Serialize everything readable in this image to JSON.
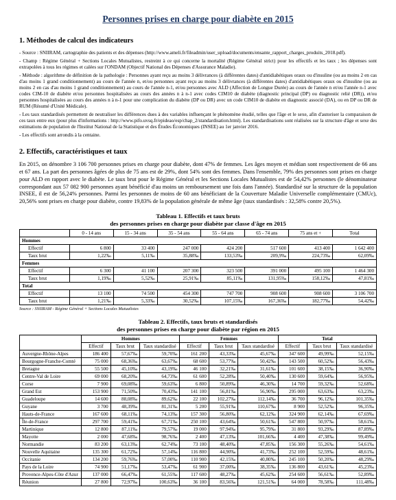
{
  "title": "Personnes prises en charge pour diabète en 2015",
  "section1": {
    "heading": "1. Méthodes de calcul des indicateurs",
    "bullets": [
      "- Source : SNIIRAM, cartographie des patients et des dépenses (http://www.ameli.fr/fileadmin/user_upload/documents/ensante_rapport_charges_produits_2018.pdf).",
      "- Champ : Régime Général + Sections Locales Mutualistes, restreint à ce qui concerne la mortalité (Régime Général strict) pour les effectifs et les taux ; les dépenses sont extrapolées à tous les régimes et calées sur l'ONDAM (Objectif National des Dépenses d'Assurance Maladie).",
      "- Méthode : algorithme de définition de la pathologie : Personnes ayant reçu au moins 3 délivrances (à différentes dates) d'antidiabétiques oraux ou d'insuline (ou au moins 2 en cas d'au moins 1 grand conditionnement) au cours de l'année n, et/ou personnes ayant reçu au moins 3 délivrances (à différentes dates) d'antidiabétiques oraux ou d'insuline (ou au moins 2 en cas d'au moins 1 grand conditionnement) au cours de l'année n-1, et/ou personnes avec ALD (Affection de Longue Durée) au cours de l'année n et/ou l'année n-1 avec codes CIM-10 de diabète et/ou personnes hospitalisées au cours des années n à n-1 avec codes CIM10 de diabète (diagnostic principal (DP) ou diagnostic relié (DR)), et/ou personnes hospitalisées au cours des années n à n-1 pour une complication du diabète (DP ou DR) avec un code CIM10 de diabète en diagnostic associé (DA), ou en DP ou DR de RUM (Résumé d'Unité Médicale).",
      "- Les taux standardisés permettent de neutraliser les différences dues à des variables influençant le phénomène étudié, telles que l'âge et le sexe, afin d'autoriser la comparaison de ces taux entre eux (pour plus d'informations : http://www.pifo.uvsq.fr/epideao/esp/chap_2/standardisation.html). Les standardisations sont réalisées sur la structure d'âge et sexe des estimations de population de l'Institut National de la Statistique et des Études Économiques (INSEE) au 1er janvier 2016.",
      "- Les effectifs sont arrondis à la centaine."
    ]
  },
  "section2": {
    "heading": "2. Effectifs, caractéristiques et taux",
    "intro": "En 2015, on dénombre 3 106 700 personnes prises en charge pour diabète, dont 47% de femmes. Les âges moyen et médian sont respectivement de 66 ans et 67 ans. La part des personnes âgées de plus de 75 ans est de 29%, dont 54% sont des femmes. Dans l'ensemble, 79% des personnes sont prises en charge pour ALD en rapport avec le diabète. Le taux brut pour le Régime Général et les Sections Locales Mutualistes est de 54,42% personnes (le dénominateur correspondant aux 57 082 900 personnes ayant bénéficié d'au moins un remboursement une fois dans l'année). Standardisé sur la structure de la population INSEE, il est de 56,24% personnes. Parmi les personnes de moins de 60 ans bénéficiant de la Couverture Maladie Universelle complémentaire (CMUc), 20,56% sont prises en charge pour diabète, contre 19,83% de la population générale de même âge (taux standardisés : 32,58% contre 20,5%)."
  },
  "table1": {
    "title": "Tableau 1. Effectifs et taux bruts",
    "subtitle": "des personnes prises en charge pour diabète par classe d'âge en 2015",
    "cols": [
      "0 - 14 ans",
      "15 - 34 ans",
      "35 - 54 ans",
      "55 - 64 ans",
      "65 - 74 ans",
      "75 ans et +",
      "Total"
    ],
    "groups": [
      {
        "label": "Hommes",
        "rows": [
          {
            "label": "Effectif",
            "vals": [
              "6 800",
              "33 400",
              "247 000",
              "424 200",
              "517 600",
              "413 400",
              "1 642 400"
            ]
          },
          {
            "label": "Taux brut",
            "vals": [
              "1,22‰",
              "5,11‰",
              "35,88‰",
              "133,53‰",
              "209,9‰",
              "224,73‰",
              "62,09‰"
            ]
          }
        ]
      },
      {
        "label": "Femmes",
        "rows": [
          {
            "label": "Effectif",
            "vals": [
              "6 300",
              "41 100",
              "207 300",
              "323 500",
              "391 000",
              "495 100",
              "1 464 300"
            ]
          },
          {
            "label": "Taux brut",
            "vals": [
              "1,19‰",
              "5,52‰",
              "25,91‰",
              "85,11‰",
              "131,95‰",
              "158,12‰",
              "47,81‰"
            ]
          }
        ]
      },
      {
        "label": "Total",
        "rows": [
          {
            "label": "Effectif",
            "vals": [
              "13 100",
              "74 500",
              "454 300",
              "747 700",
              "908 600",
              "908 600",
              "3 106 700"
            ]
          },
          {
            "label": "Taux brut",
            "vals": [
              "1,21‰",
              "5,33‰",
              "30,52‰",
              "107,15‰",
              "167,36‰",
              "182,77‰",
              "54,42‰"
            ]
          }
        ]
      }
    ],
    "source": "Source : SNIIRAM - Régime Général + Sections Locales Mutualistes"
  },
  "table2": {
    "title": "Tableau 2. Effectifs, taux bruts et standardisés",
    "subtitle": "des personnes prises en charge pour diabète par région en 2015",
    "groupcols": [
      "Hommes",
      "Femmes",
      "Total"
    ],
    "subcols": [
      "Effectif",
      "Taux brut",
      "Taux standardisé",
      "Effectif",
      "Taux brut",
      "Taux standardisé",
      "Effectif",
      "Taux brut",
      "Taux standardisé"
    ],
    "rows": [
      {
        "label": "Auvergne-Rhône-Alpes",
        "vals": [
          "186 400",
          "57,67‰",
          "59,70‰",
          "161 200",
          "43,33‰",
          "45,67‰",
          "347 600",
          "49,99‰",
          "52,15‰"
        ]
      },
      {
        "label": "Bourgogne-Franche-Comté",
        "vals": [
          "75 000",
          "68,36‰",
          "63,67‰",
          "68 600",
          "53,77‰",
          "50,42‰",
          "143 500",
          "60,52‰",
          "56,43‰"
        ]
      },
      {
        "label": "Bretagne",
        "vals": [
          "55 500",
          "45,10‰",
          "43,19‰",
          "46 100",
          "32,21‰",
          "31,61‰",
          "101 600",
          "38,15‰",
          "36,90‰"
        ]
      },
      {
        "label": "Centre-Val de Loire",
        "vals": [
          "69 000",
          "68,20‰",
          "64,73‰",
          "61 600",
          "52,28‰",
          "50,40‰",
          "130 600",
          "59,64‰",
          "56,95‰"
        ]
      },
      {
        "label": "Corse",
        "vals": [
          "7 900",
          "69,08‰",
          "59,63‰",
          "6 800",
          "50,89‰",
          "46,30‰",
          "14 700",
          "59,32‰",
          "52,68‰"
        ]
      },
      {
        "label": "Grand Est",
        "vals": [
          "153 900",
          "71,50‰",
          "70,43‰",
          "141 100",
          "56,81‰",
          "56,90‰",
          "295 000",
          "63,63‰",
          "63,23‰"
        ]
      },
      {
        "label": "Guadeloupe",
        "vals": [
          "14 600",
          "88,08‰",
          "89,62‰",
          "22 100",
          "102,27‰",
          "112,14‰",
          "36 700",
          "96,12‰",
          "101,35‰"
        ]
      },
      {
        "label": "Guyane",
        "vals": [
          "3 700",
          "48,39‰",
          "81,31‰",
          "5 200",
          "55,91‰",
          "110,67‰",
          "8 900",
          "52,52‰",
          "96,35‰"
        ]
      },
      {
        "label": "Hauts-de-France",
        "vals": [
          "167 600",
          "68,11‰",
          "74,13‰",
          "157 300",
          "56,80‰",
          "62,12‰",
          "324 900",
          "62,14‰",
          "67,69‰"
        ]
      },
      {
        "label": "Île-de-France",
        "vals": [
          "297 700",
          "59,41‰",
          "67,71‰",
          "250 100",
          "43,64‰",
          "50,61‰",
          "547 800",
          "50,97‰",
          "58,61‰"
        ]
      },
      {
        "label": "Martinique",
        "vals": [
          "12 800",
          "87,11‰",
          "79,57‰",
          "19 000",
          "97,94‰",
          "95,79‰",
          "31 800",
          "93,29‰",
          "87,89‰"
        ]
      },
      {
        "label": "Mayotte",
        "vals": [
          "2 000",
          "47,68‰",
          "98,76‰",
          "2 400",
          "47,13‰",
          "101,66‰",
          "4 400",
          "47,38‰",
          "99,49‰"
        ]
      },
      {
        "label": "Normandie",
        "vals": [
          "83 200",
          "63,13‰",
          "62,74‰",
          "73 100",
          "48,40‰",
          "47,85‰",
          "156 300",
          "55,26‰",
          "54,61‰"
        ]
      },
      {
        "label": "Nouvelle Aquitaine",
        "vals": [
          "135 300",
          "61,72‰",
          "57,14‰",
          "116 800",
          "44,90‰",
          "41,73‰",
          "252 100",
          "52,59‰",
          "48,61‰"
        ]
      },
      {
        "label": "Occitanie",
        "vals": [
          "134 200",
          "59,76‰",
          "57,00‰",
          "110 900",
          "42,15‰",
          "40,80‰",
          "245 100",
          "50,20‰",
          "48,29‰"
        ]
      },
      {
        "label": "Pays de la Loire",
        "vals": [
          "74 900",
          "51,17‰",
          "53,47‰",
          "61 900",
          "37,00‰",
          "38,35‰",
          "136 800",
          "43,61‰",
          "45,23‰"
        ]
      },
      {
        "label": "Provence-Alpes-Côte d'Azur",
        "vals": [
          "137 000",
          "66,47‰",
          "61,55‰",
          "117 600",
          "48,27‰",
          "45,62‰",
          "254 600",
          "56,61‰",
          "52,89‰"
        ]
      },
      {
        "label": "Réunion",
        "vals": [
          "27 800",
          "72,97‰",
          "100,63‰",
          "36 100",
          "83,56‰",
          "121,51‰",
          "64 000",
          "78,58‰",
          "111,48‰"
        ]
      }
    ]
  }
}
